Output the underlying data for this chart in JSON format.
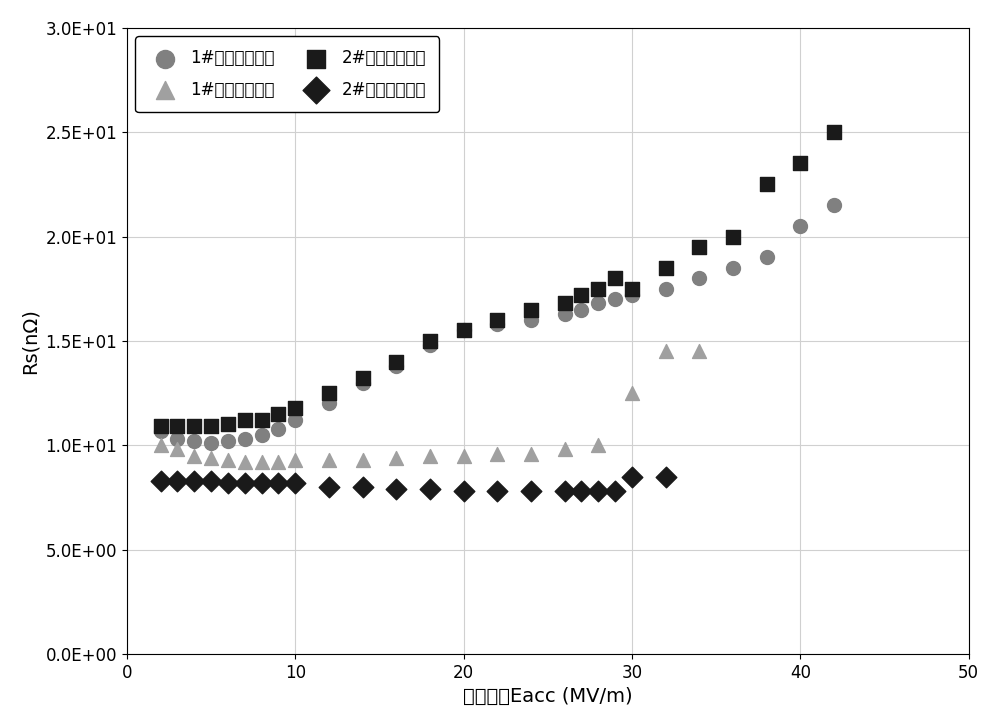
{
  "series1_before_x": [
    2,
    3,
    4,
    5,
    6,
    7,
    8,
    9,
    10,
    12,
    14,
    16,
    18,
    20,
    22,
    24,
    26,
    27,
    28,
    29,
    30,
    32,
    34,
    36,
    38,
    40,
    42
  ],
  "series1_before_y": [
    10.7,
    10.3,
    10.2,
    10.1,
    10.2,
    10.3,
    10.5,
    10.8,
    11.2,
    12.0,
    13.0,
    13.8,
    14.8,
    15.5,
    15.8,
    16.0,
    16.3,
    16.5,
    16.8,
    17.0,
    17.2,
    17.5,
    18.0,
    18.5,
    19.0,
    20.5,
    21.5
  ],
  "series1_after_x": [
    2,
    3,
    4,
    5,
    6,
    7,
    8,
    9,
    10,
    12,
    14,
    16,
    18,
    20,
    22,
    24,
    26,
    28,
    30,
    32,
    34
  ],
  "series1_after_y": [
    10.0,
    9.8,
    9.5,
    9.4,
    9.3,
    9.2,
    9.2,
    9.2,
    9.3,
    9.3,
    9.3,
    9.4,
    9.5,
    9.5,
    9.6,
    9.6,
    9.8,
    10.0,
    12.5,
    14.5,
    14.5
  ],
  "series2_before_x": [
    2,
    3,
    4,
    5,
    6,
    7,
    8,
    9,
    10,
    12,
    14,
    16,
    18,
    20,
    22,
    24,
    26,
    27,
    28,
    29,
    30,
    32,
    34,
    36,
    38,
    40,
    42
  ],
  "series2_before_y": [
    10.9,
    10.9,
    10.9,
    10.9,
    11.0,
    11.2,
    11.2,
    11.5,
    11.8,
    12.5,
    13.2,
    14.0,
    15.0,
    15.5,
    16.0,
    16.5,
    16.8,
    17.2,
    17.5,
    18.0,
    17.5,
    18.5,
    19.5,
    20.0,
    22.5,
    23.5,
    25.0
  ],
  "series2_after_x": [
    2,
    3,
    4,
    5,
    6,
    7,
    8,
    9,
    10,
    12,
    14,
    16,
    18,
    20,
    22,
    24,
    26,
    27,
    28,
    29,
    30,
    32
  ],
  "series2_after_y": [
    8.3,
    8.3,
    8.3,
    8.3,
    8.2,
    8.2,
    8.2,
    8.2,
    8.2,
    8.0,
    8.0,
    7.9,
    7.9,
    7.8,
    7.8,
    7.8,
    7.8,
    7.8,
    7.8,
    7.8,
    8.5,
    8.5
  ],
  "color_s1_before": "#808080",
  "color_s1_after": "#a0a0a0",
  "color_s2_before": "#1a1a1a",
  "color_s2_after": "#1a1a1a",
  "xlabel": "加速梯度Eacc (MV/m)",
  "ylabel": "Rs(nΩ)",
  "legend1": "1#腔中温退火前",
  "legend2": "1#腔中温退火后",
  "legend3": "2#腔中温退火前",
  "legend4": "2#腔中温退火后",
  "xlim": [
    0,
    50
  ],
  "ylim": [
    0,
    30
  ],
  "yticks": [
    0,
    5,
    10,
    15,
    20,
    25,
    30
  ],
  "xticks": [
    0,
    10,
    20,
    30,
    40,
    50
  ],
  "background_color": "#ffffff"
}
